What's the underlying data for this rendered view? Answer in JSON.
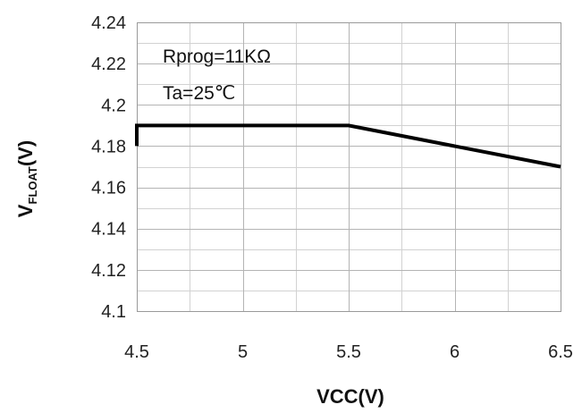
{
  "chart_data": {
    "type": "line",
    "x": [
      4.5,
      4.5,
      5.5,
      6.5
    ],
    "series": [
      {
        "values": [
          4.18,
          4.19,
          4.19,
          4.17
        ],
        "color": "#000000"
      }
    ],
    "xlim": [
      4.5,
      6.5
    ],
    "ylim": [
      4.1,
      4.24
    ],
    "xticks": [
      4.5,
      5,
      5.5,
      6,
      6.5
    ],
    "xtick_labels": [
      "4.5",
      "5",
      "5.5",
      "6",
      "6.5"
    ],
    "yticks": [
      4.1,
      4.12,
      4.14,
      4.16,
      4.18,
      4.2,
      4.22,
      4.24
    ],
    "ytick_labels": [
      "4.1",
      "4.12",
      "4.14",
      "4.16",
      "4.18",
      "4.2",
      "4.22",
      "4.24"
    ],
    "xlabel": "VCC(V)",
    "ylabel": {
      "main": "V",
      "subscript": "FLOAT",
      "suffix": "(V)"
    },
    "annotations": [
      "Rprog=11KΩ",
      "Ta=25℃"
    ],
    "grid": true,
    "legend": "none"
  }
}
